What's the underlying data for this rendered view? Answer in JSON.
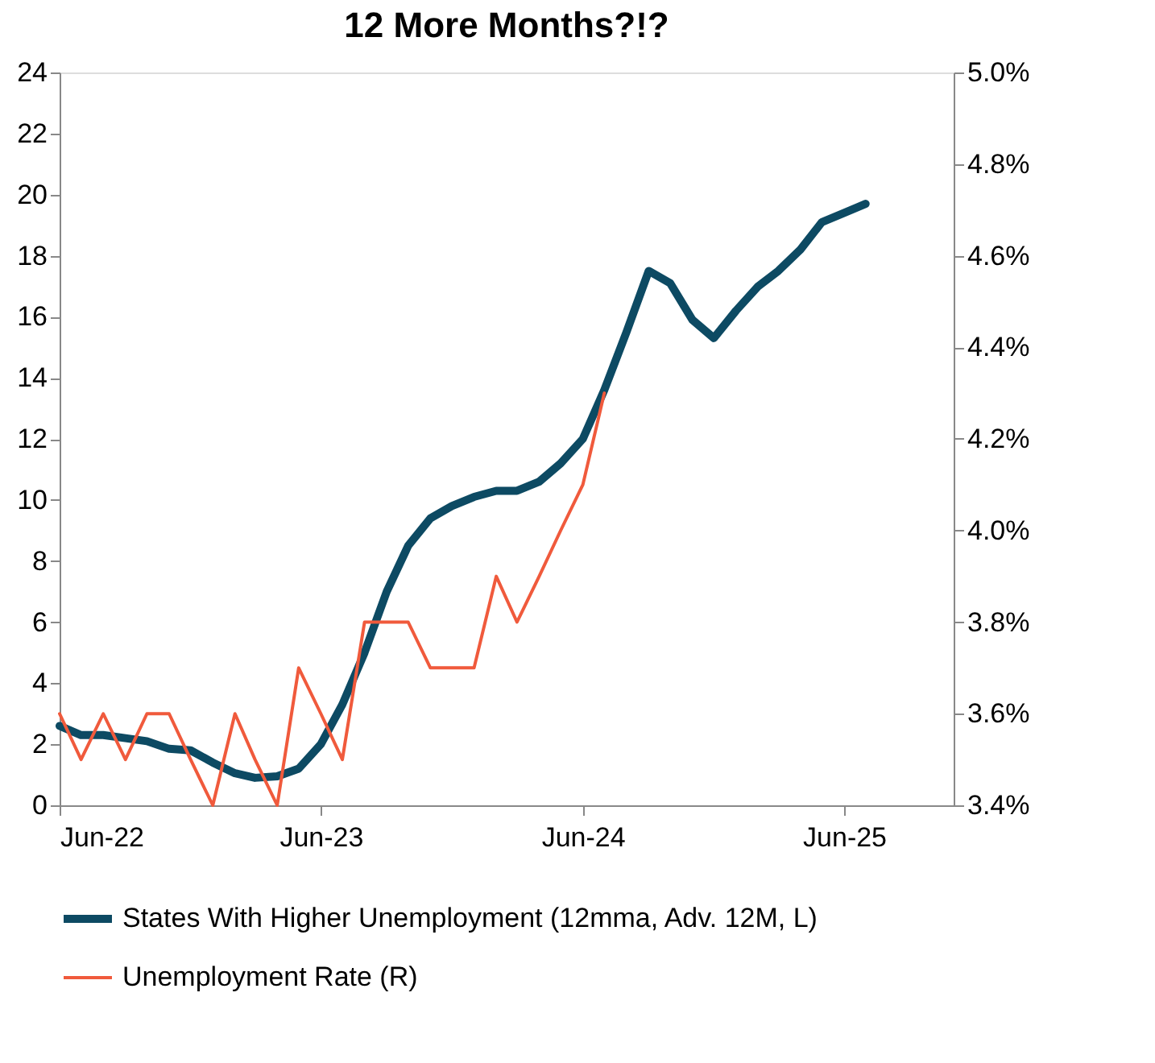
{
  "chart_data": {
    "type": "line",
    "title": "12 More Months?!?",
    "x": [
      "2022-06",
      "2022-07",
      "2022-08",
      "2022-09",
      "2022-10",
      "2022-11",
      "2022-12",
      "2023-01",
      "2023-02",
      "2023-03",
      "2023-04",
      "2023-05",
      "2023-06",
      "2023-07",
      "2023-08",
      "2023-09",
      "2023-10",
      "2023-11",
      "2023-12",
      "2024-01",
      "2024-02",
      "2024-03",
      "2024-04",
      "2024-05",
      "2024-06",
      "2024-07",
      "2024-08",
      "2024-09",
      "2024-10",
      "2024-11",
      "2024-12",
      "2025-01",
      "2025-02",
      "2025-03",
      "2025-04",
      "2025-05",
      "2025-06",
      "2025-07"
    ],
    "series": [
      {
        "name": "States With Higher Unemployment (12mma, Adv. 12M, L)",
        "color": "#0d4a63",
        "values": [
          2.6,
          2.3,
          2.3,
          2.2,
          2.1,
          1.85,
          1.8,
          1.4,
          1.05,
          0.9,
          0.95,
          1.2,
          2.0,
          3.3,
          5.0,
          7.0,
          8.5,
          9.4,
          9.8,
          10.1,
          10.3,
          10.3,
          10.6,
          11.2,
          12.0,
          13.6,
          15.5,
          17.5,
          17.1,
          15.9,
          15.3,
          16.2,
          17.0,
          17.5,
          18.2,
          19.1,
          19.4,
          19.7
        ]
      },
      {
        "name": "Unemployment Rate (R)",
        "color": "#f05a3c",
        "axis": "y2",
        "x": [
          "2022-06",
          "2022-07",
          "2022-08",
          "2022-09",
          "2022-10",
          "2022-11",
          "2022-12",
          "2023-01",
          "2023-02",
          "2023-03",
          "2023-04",
          "2023-05",
          "2023-06",
          "2023-07",
          "2023-08",
          "2023-09",
          "2023-10",
          "2023-11",
          "2023-12",
          "2024-01",
          "2024-02",
          "2024-03",
          "2024-04",
          "2024-05",
          "2024-06",
          "2024-07"
        ],
        "values": [
          3.6,
          3.5,
          3.6,
          3.5,
          3.6,
          3.6,
          3.5,
          3.4,
          3.6,
          3.5,
          3.4,
          3.7,
          3.6,
          3.5,
          3.8,
          3.8,
          3.8,
          3.7,
          3.7,
          3.7,
          3.9,
          3.8,
          3.9,
          4.0,
          4.1,
          4.3
        ]
      }
    ],
    "xlim": [
      "2022-06",
      "2025-11"
    ],
    "xticks": [
      {
        "value": "2022-06",
        "label": "Jun-22"
      },
      {
        "value": "2023-06",
        "label": "Jun-23"
      },
      {
        "value": "2024-06",
        "label": "Jun-24"
      },
      {
        "value": "2025-06",
        "label": "Jun-25"
      }
    ],
    "ylim": [
      0,
      24
    ],
    "yticks": [
      0,
      2,
      4,
      6,
      8,
      10,
      12,
      14,
      16,
      18,
      20,
      22,
      24
    ],
    "y2lim": [
      3.4,
      5.0
    ],
    "y2ticks": [
      {
        "value": 3.4,
        "label": "3.4%"
      },
      {
        "value": 3.6,
        "label": "3.6%"
      },
      {
        "value": 3.8,
        "label": "3.8%"
      },
      {
        "value": 4.0,
        "label": "4.0%"
      },
      {
        "value": 4.2,
        "label": "4.2%"
      },
      {
        "value": 4.4,
        "label": "4.4%"
      },
      {
        "value": 4.6,
        "label": "4.6%"
      },
      {
        "value": 4.8,
        "label": "4.8%"
      },
      {
        "value": 5.0,
        "label": "5.0%"
      }
    ],
    "grid": false,
    "legend": "bottom",
    "marker": "none",
    "line_style": "solid"
  }
}
